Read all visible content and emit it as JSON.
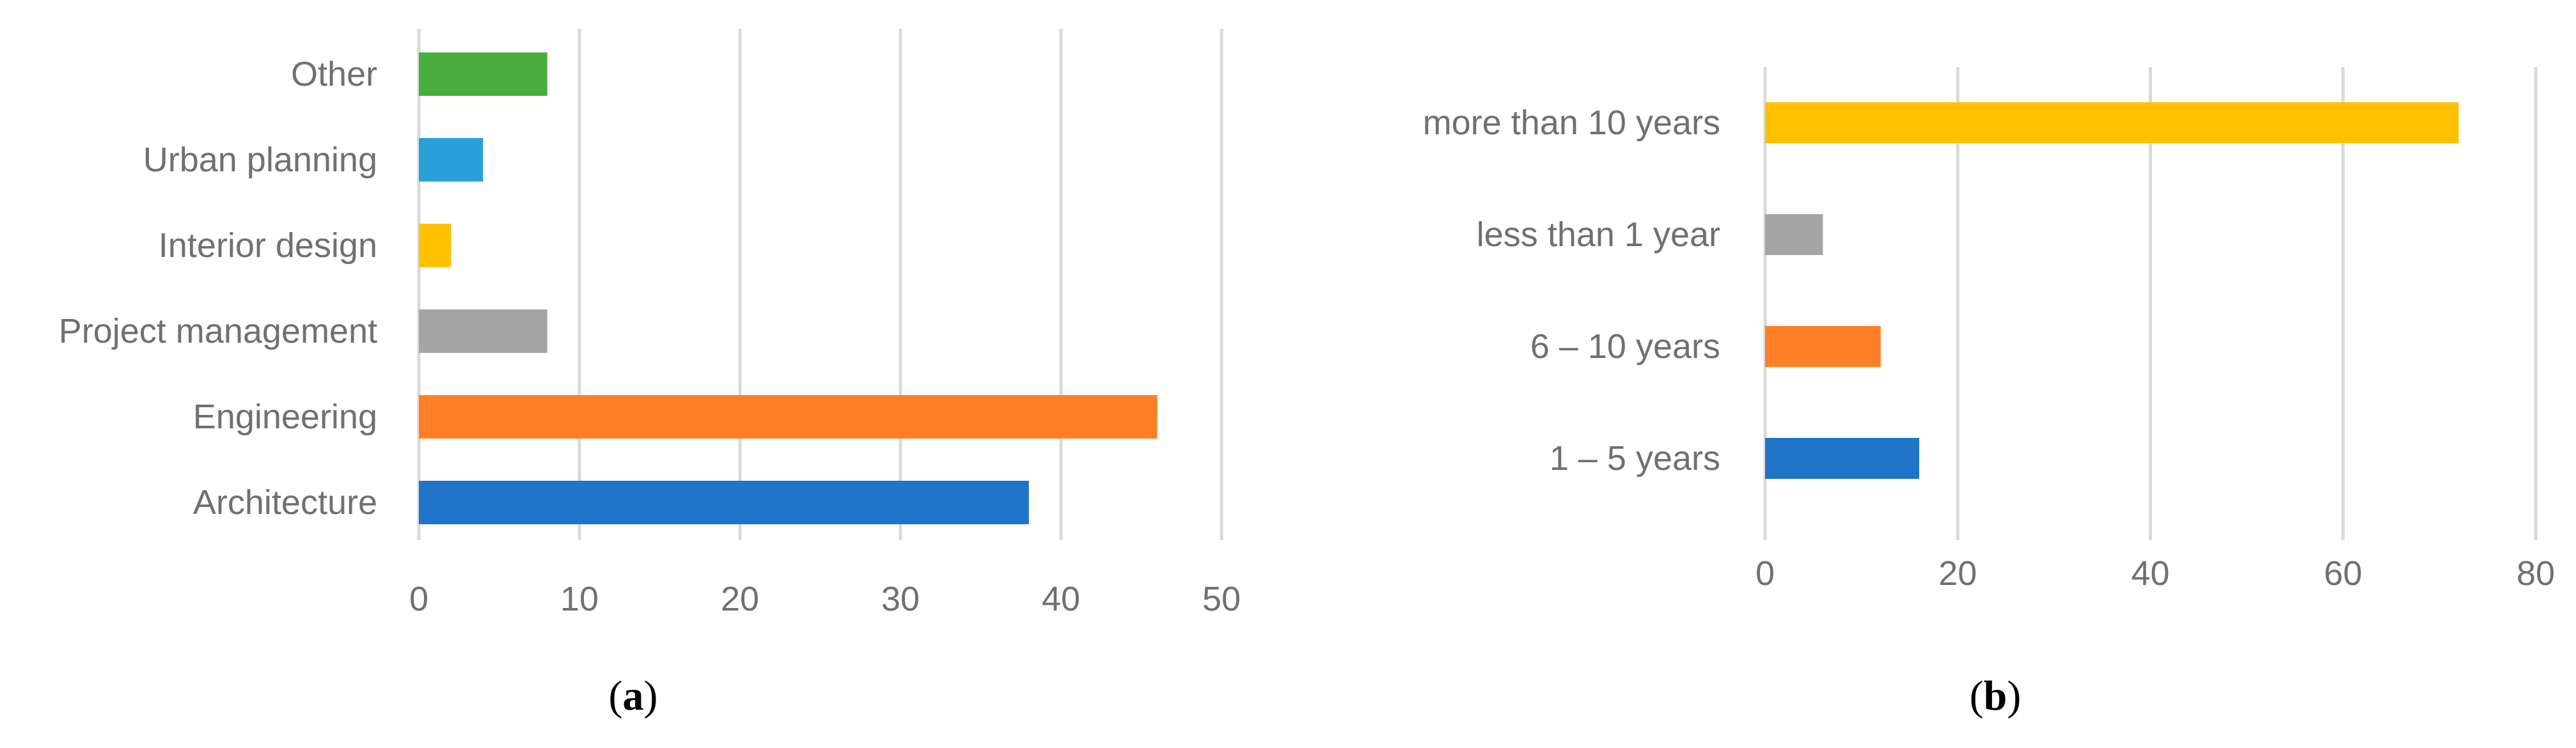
{
  "chart_data": [
    {
      "type": "bar",
      "orientation": "horizontal",
      "panel_label": {
        "open": "(",
        "letter": "a",
        "close": ")"
      },
      "categories": [
        "Other",
        "Urban planning",
        "Interior design",
        "Project management",
        "Engineering",
        "Architecture"
      ],
      "values": [
        8,
        4,
        2,
        8,
        46,
        38
      ],
      "colors": [
        "#4AAE3F",
        "#2AA0DA",
        "#FFC000",
        "#A5A5A5",
        "#FF7F27",
        "#1F74C8"
      ],
      "xlim": [
        0,
        50
      ],
      "xticks": [
        "0",
        "10",
        "20",
        "30",
        "40",
        "50"
      ],
      "grid": true,
      "legend": "none"
    },
    {
      "type": "bar",
      "orientation": "horizontal",
      "panel_label": {
        "open": "(",
        "letter": "b",
        "close": ")"
      },
      "categories": [
        "more than 10 years",
        "less than 1 year",
        "6 – 10 years",
        "1 – 5 years"
      ],
      "values": [
        72,
        6,
        12,
        16
      ],
      "colors": [
        "#FFC000",
        "#A5A5A5",
        "#FF7F27",
        "#1F74C8"
      ],
      "xlim": [
        0,
        80
      ],
      "xticks": [
        "0",
        "20",
        "40",
        "60",
        "80"
      ],
      "grid": true,
      "legend": "none"
    }
  ]
}
